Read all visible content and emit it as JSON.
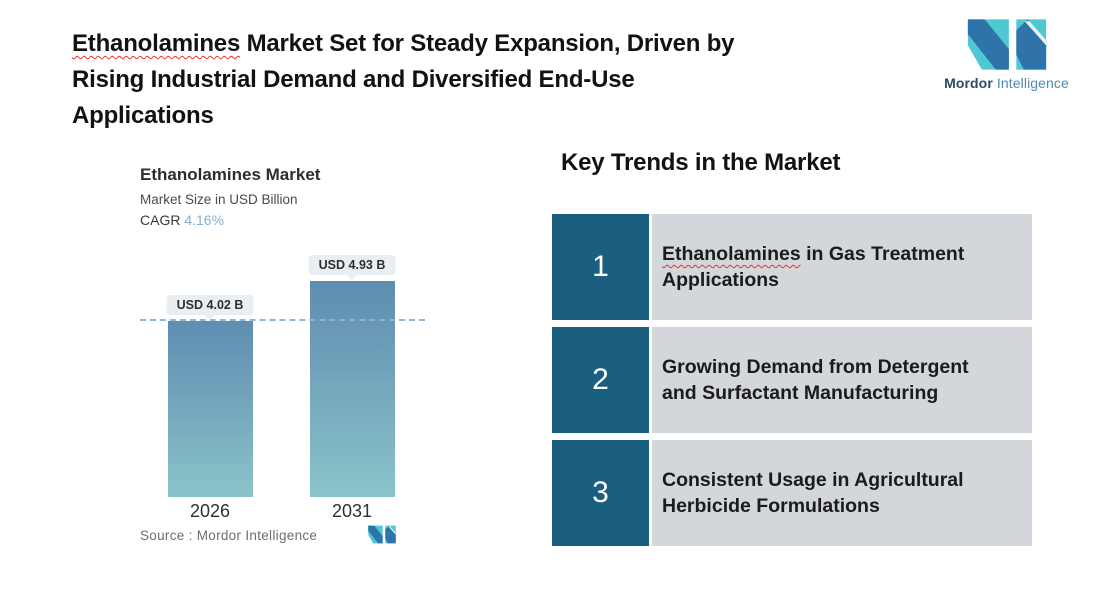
{
  "header": {
    "title": {
      "line1_highlight": "Ethanolamines",
      "line1_rest": " Market Set for Steady Expansion, Driven by",
      "line2": "Rising Industrial Demand and Diversified End-Use",
      "line3": "Applications"
    },
    "logo": {
      "brand_bold": "Mordor",
      "brand_light": "Intelligence"
    }
  },
  "chart": {
    "title": "Ethanolamines Market",
    "subtitle": "Market Size in USD Billion",
    "cagr_label": "CAGR",
    "cagr_value": "4.16%",
    "source_label": "Source :  Mordor Intelligence",
    "bars": [
      {
        "year": "2026",
        "label": "USD 4.02 B"
      },
      {
        "year": "2031",
        "label": "USD 4.93 B"
      }
    ]
  },
  "chart_data": {
    "type": "bar",
    "categories": [
      "2026",
      "2031"
    ],
    "values": [
      4.02,
      4.93
    ],
    "series_name": "Market Size",
    "title": "Ethanolamines Market",
    "subtitle": "Market Size in USD Billion",
    "cagr": "4.16%",
    "data_labels": [
      "USD 4.02 B",
      "USD 4.93 B"
    ],
    "xlabel": "",
    "ylabel": "USD Billion",
    "ylim": [
      0,
      5.5
    ],
    "grid": false,
    "legend": false,
    "reference_line_at": 4.02,
    "source": "Source :  Mordor Intelligence"
  },
  "trends": {
    "heading": "Key Trends in the Market",
    "items": [
      {
        "number": "1",
        "line1_highlight": "Ethanolamines",
        "line1_rest": " in Gas Treatment",
        "line2": "Applications"
      },
      {
        "number": "2",
        "line1": "Growing Demand from Detergent",
        "line2": "and Surfactant Manufacturing"
      },
      {
        "number": "3",
        "line1": "Consistent Usage in Agricultural",
        "line2": "Herbicide Formulations"
      }
    ]
  },
  "colors": {
    "trend_number_box": "#1a5f80",
    "trend_content_box": "#d3d6db",
    "bar_gradient_top": "#5e8db1",
    "bar_gradient_bottom": "#8ac4ca",
    "dashed_line": "#8fb3d3",
    "cagr_value_blue": "#86aecd",
    "spellcheck_red": "#e0362c",
    "pill_background": "#e9eef3",
    "logo_teal": "#4ec9d1",
    "logo_blue": "#2e74ab"
  }
}
